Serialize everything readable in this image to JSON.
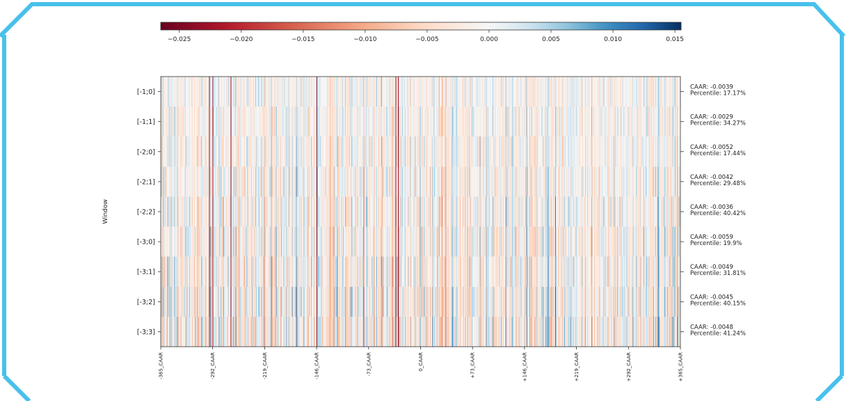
{
  "chart_data": {
    "type": "heatmap",
    "title": "",
    "ylabel": "Window",
    "xlabel": "",
    "x_tick_labels": [
      "-365_CAAR",
      "-292_CAAR",
      "-219_CAAR",
      "-146_CAAR",
      "-73_CAAR",
      "0_CAAR",
      "+73_CAAR",
      "+146_CAAR",
      "+219_CAAR",
      "+292_CAAR",
      "+365_CAAR"
    ],
    "x_range": [
      -365,
      365
    ],
    "colormap": "RdBu",
    "colorbar": {
      "range": [
        -0.0265,
        0.0155
      ],
      "ticks": [
        -0.025,
        -0.02,
        -0.015,
        -0.01,
        -0.005,
        0.0,
        0.005,
        0.01,
        0.015
      ],
      "tick_labels": [
        "−0.025",
        "−0.020",
        "−0.015",
        "−0.010",
        "−0.005",
        "0.000",
        "0.005",
        "0.010",
        "0.015"
      ],
      "placement": "top"
    },
    "rows": [
      {
        "window": "[-1;0]",
        "caar": "CAAR: -0.0039",
        "percentile": "Percentile: 17.17%"
      },
      {
        "window": "[-1;1]",
        "caar": "CAAR: -0.0029",
        "percentile": "Percentile: 34.27%"
      },
      {
        "window": "[-2;0]",
        "caar": "CAAR: -0.0052",
        "percentile": "Percentile: 17.44%"
      },
      {
        "window": "[-2;1]",
        "caar": "CAAR: -0.0042",
        "percentile": "Percentile: 29.48%"
      },
      {
        "window": "[-2;2]",
        "caar": "CAAR: -0.0036",
        "percentile": "Percentile: 40.42%"
      },
      {
        "window": "[-3;0]",
        "caar": "CAAR: -0.0059",
        "percentile": "Percentile: 19.9%"
      },
      {
        "window": "[-3;1]",
        "caar": "CAAR: -0.0049",
        "percentile": "Percentile: 31.81%"
      },
      {
        "window": "[-3;2]",
        "caar": "CAAR: -0.0045",
        "percentile": "Percentile: 40.15%"
      },
      {
        "window": "[-3;3]",
        "caar": "CAAR: -0.0048",
        "percentile": "Percentile: 41.24%"
      }
    ],
    "strong_negative_columns": [
      68,
      73,
      98,
      219,
      330,
      333
    ],
    "grid": false
  },
  "colors": {
    "frame": "#47c1ec",
    "cmap_min": "#67001f",
    "cmap_mid": "#f7f7f7",
    "cmap_max": "#2166ac"
  }
}
